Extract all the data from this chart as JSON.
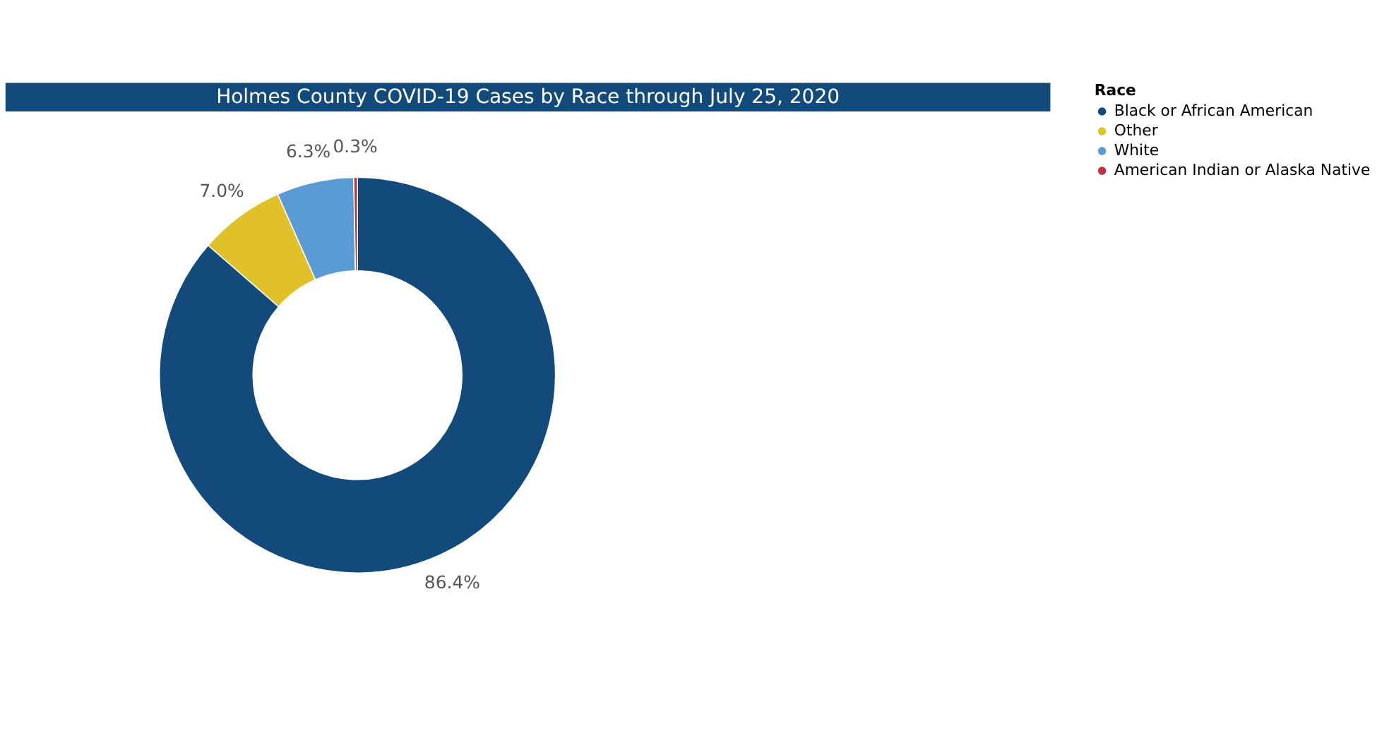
{
  "chart_data": {
    "type": "donut",
    "title": "Holmes County COVID-19 Cases by Race through July 25, 2020",
    "legend_title": "Race",
    "categories": [
      "Black or African American",
      "Other",
      "White",
      "American Indian or Alaska Native"
    ],
    "values": [
      86.4,
      7.0,
      6.3,
      0.3
    ],
    "colors": [
      "#134a7c",
      "#e0c12a",
      "#5b9bd5",
      "#c0323a"
    ],
    "value_labels": [
      "86.4%",
      "7.0%",
      "6.3%",
      "0.3%"
    ],
    "legend": "right"
  }
}
